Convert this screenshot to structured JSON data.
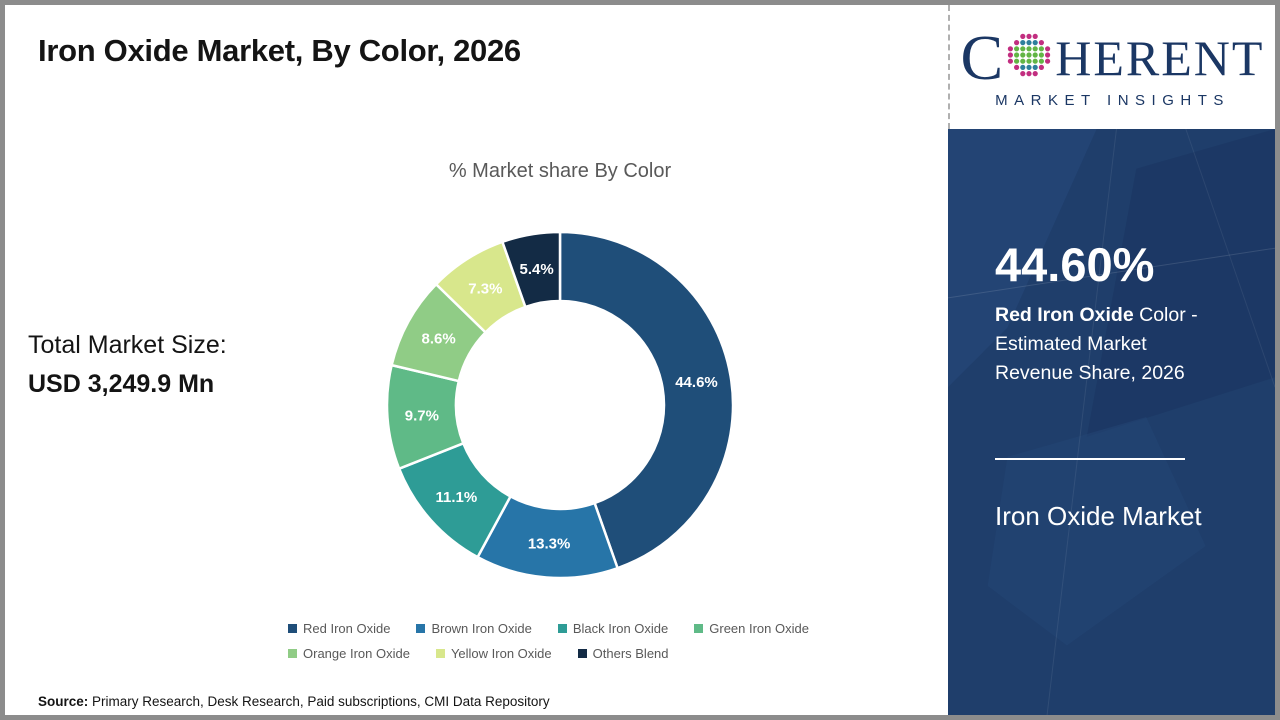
{
  "header": {
    "title": "Iron Oxide Market, By Color, 2026"
  },
  "market_size": {
    "label": "Total Market Size:",
    "value": "USD 3,249.9 Mn"
  },
  "chart_data": {
    "type": "pie",
    "subtype": "donut",
    "title": "% Market share By Color",
    "legend_position": "bottom",
    "start_angle_deg": 0,
    "direction": "clockwise",
    "categories": [
      "Red Iron Oxide",
      "Brown Iron Oxide",
      "Black Iron Oxide",
      "Green Iron Oxide",
      "Orange Iron Oxide",
      "Yellow Iron Oxide",
      "Others Blend"
    ],
    "series": [
      {
        "name": "Red Iron Oxide",
        "value": 44.6,
        "color": "#1f4e79"
      },
      {
        "name": "Brown Iron Oxide",
        "value": 13.3,
        "color": "#2775a8"
      },
      {
        "name": "Black Iron Oxide",
        "value": 11.1,
        "color": "#2e9c96"
      },
      {
        "name": "Green Iron Oxide",
        "value": 9.7,
        "color": "#5fba87"
      },
      {
        "name": "Orange Iron Oxide",
        "value": 8.6,
        "color": "#90cc86"
      },
      {
        "name": "Yellow Iron Oxide",
        "value": 7.3,
        "color": "#d8e78c"
      },
      {
        "name": "Others Blend",
        "value": 5.4,
        "color": "#132b45"
      }
    ]
  },
  "sidebar": {
    "big_value": "44.60%",
    "desc_highlight": "Red Iron Oxide",
    "desc_rest": " Color - Estimated Market Revenue Share, 2026",
    "footer_title": "Iron Oxide Market"
  },
  "logo": {
    "word_c": "C",
    "word_rest": "HERENT",
    "subtitle": "MARKET INSIGHTS",
    "globe_colors": {
      "outer": "#c22e80",
      "mid": "#2e7f9c",
      "inner": "#62b545"
    }
  },
  "source": {
    "label": "Source:",
    "text": " Primary Research, Desk Research, Paid subscriptions, CMI Data Repository"
  },
  "colors": {
    "sidebar_panel": "#1f3e6b",
    "brand_navy": "#1b3764",
    "muted_text": "#595959",
    "frame_border": "#8c8c8c"
  }
}
